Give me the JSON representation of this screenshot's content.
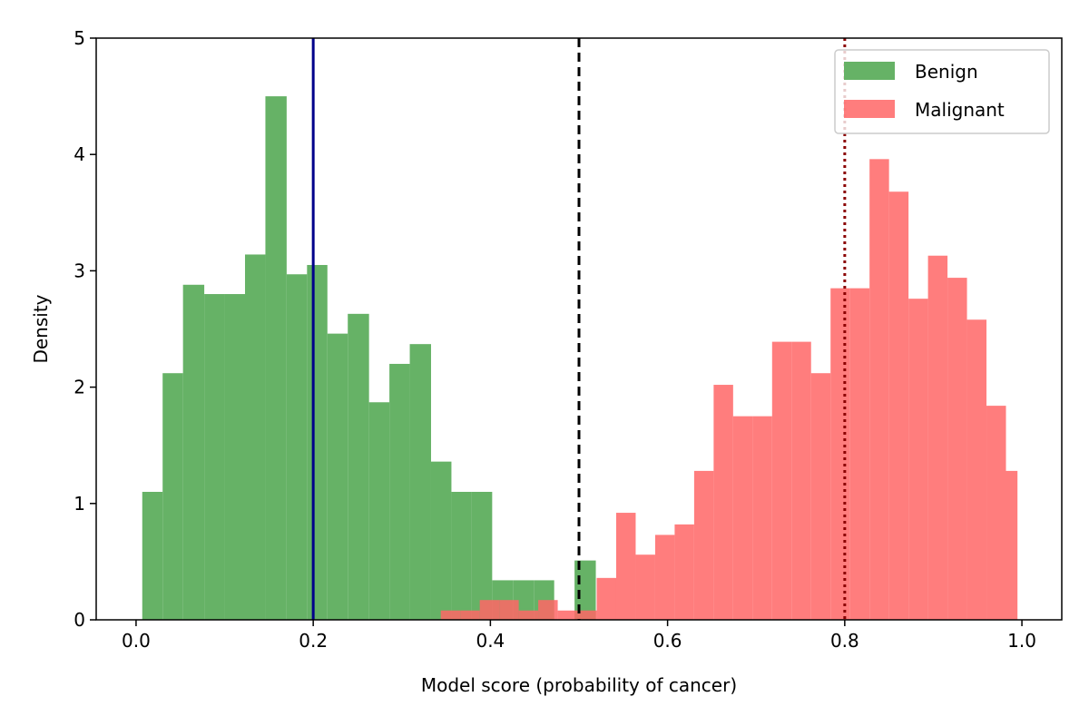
{
  "chart_data": {
    "type": "bar",
    "xlabel": "Model score (probability of cancer)",
    "ylabel": "Density",
    "xlim": [
      -0.045,
      1.045
    ],
    "ylim": [
      0,
      5
    ],
    "xticks": [
      "0.0",
      "0.2",
      "0.4",
      "0.6",
      "0.8",
      "1.0"
    ],
    "yticks": [
      "0",
      "1",
      "2",
      "3",
      "4",
      "5"
    ],
    "grid": false,
    "legend_position": "top-right",
    "series": [
      {
        "name": "Benign",
        "color": "#66b266",
        "bins": [
          [
            0.007,
            0.03,
            1.1
          ],
          [
            0.03,
            0.053,
            2.12
          ],
          [
            0.053,
            0.077,
            2.88
          ],
          [
            0.077,
            0.1,
            2.8
          ],
          [
            0.1,
            0.123,
            2.8
          ],
          [
            0.123,
            0.146,
            3.14
          ],
          [
            0.146,
            0.17,
            4.5
          ],
          [
            0.17,
            0.193,
            2.97
          ],
          [
            0.193,
            0.216,
            3.05
          ],
          [
            0.216,
            0.239,
            2.46
          ],
          [
            0.239,
            0.263,
            2.63
          ],
          [
            0.263,
            0.286,
            1.87
          ],
          [
            0.286,
            0.309,
            2.2
          ],
          [
            0.309,
            0.333,
            2.37
          ],
          [
            0.333,
            0.356,
            1.36
          ],
          [
            0.356,
            0.379,
            1.1
          ],
          [
            0.379,
            0.402,
            1.1
          ],
          [
            0.402,
            0.426,
            0.34
          ],
          [
            0.426,
            0.449,
            0.34
          ],
          [
            0.449,
            0.472,
            0.34
          ],
          [
            0.472,
            0.495,
            0.0
          ],
          [
            0.495,
            0.519,
            0.51
          ]
        ]
      },
      {
        "name": "Malignant",
        "color": "#ff6666",
        "bins": [
          [
            0.344,
            0.366,
            0.08
          ],
          [
            0.366,
            0.388,
            0.08
          ],
          [
            0.388,
            0.41,
            0.17
          ],
          [
            0.41,
            0.432,
            0.17
          ],
          [
            0.432,
            0.454,
            0.08
          ],
          [
            0.454,
            0.476,
            0.17
          ],
          [
            0.476,
            0.498,
            0.08
          ],
          [
            0.498,
            0.52,
            0.08
          ],
          [
            0.52,
            0.542,
            0.36
          ],
          [
            0.542,
            0.564,
            0.92
          ],
          [
            0.564,
            0.586,
            0.56
          ],
          [
            0.586,
            0.608,
            0.73
          ],
          [
            0.608,
            0.63,
            0.82
          ],
          [
            0.63,
            0.652,
            1.28
          ],
          [
            0.652,
            0.674,
            2.02
          ],
          [
            0.674,
            0.696,
            1.75
          ],
          [
            0.696,
            0.718,
            1.75
          ],
          [
            0.718,
            0.74,
            2.39
          ],
          [
            0.74,
            0.762,
            2.39
          ],
          [
            0.762,
            0.784,
            2.12
          ],
          [
            0.784,
            0.806,
            2.85
          ],
          [
            0.806,
            0.828,
            2.85
          ],
          [
            0.828,
            0.85,
            3.96
          ],
          [
            0.85,
            0.872,
            3.68
          ],
          [
            0.872,
            0.894,
            2.76
          ],
          [
            0.894,
            0.916,
            3.13
          ],
          [
            0.916,
            0.938,
            2.94
          ],
          [
            0.938,
            0.96,
            2.58
          ],
          [
            0.96,
            0.982,
            1.84
          ],
          [
            0.982,
            0.995,
            1.28
          ]
        ]
      }
    ],
    "reference_lines": [
      {
        "x": 0.2,
        "style": "solid",
        "color": "#00008b"
      },
      {
        "x": 0.5,
        "style": "dashed",
        "color": "#000000"
      },
      {
        "x": 0.8,
        "style": "dotted",
        "color": "#8b0000"
      }
    ]
  }
}
